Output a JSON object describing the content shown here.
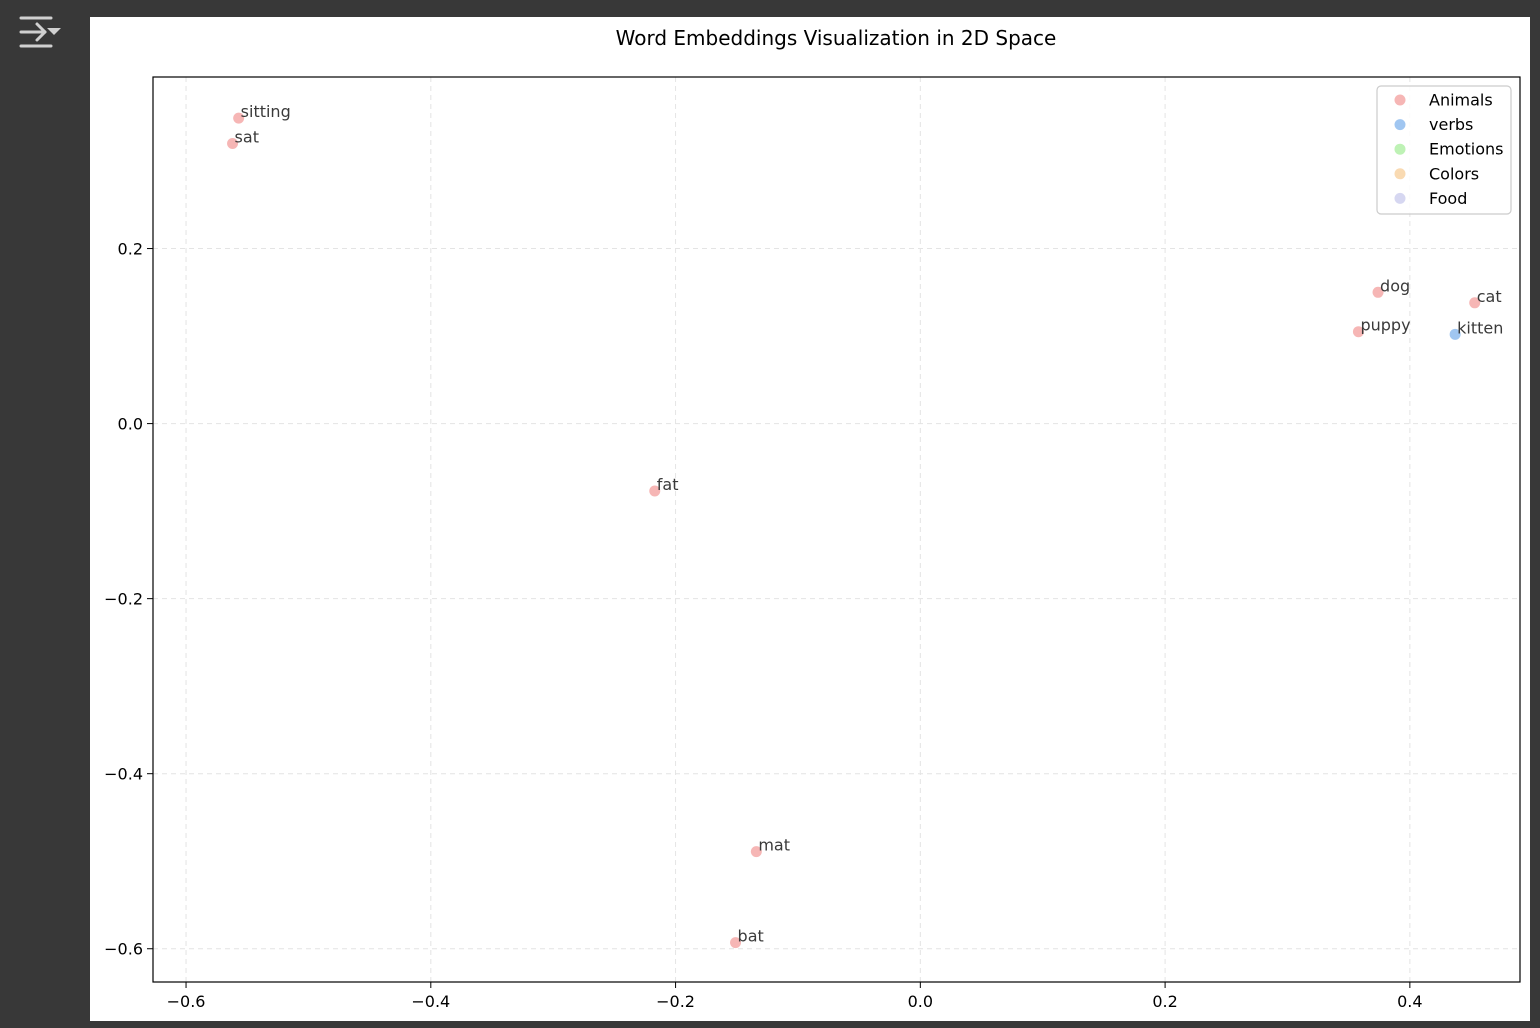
{
  "toolbar": {
    "toggle_icon": "output-collapse-icon"
  },
  "chart_data": {
    "type": "scatter",
    "title": "Word Embeddings Visualization in 2D Space",
    "xlabel": "",
    "ylabel": "",
    "xlim": [
      -0.627,
      0.49
    ],
    "ylim": [
      -0.638,
      0.396
    ],
    "xticks": [
      -0.6,
      -0.4,
      -0.2,
      0.0,
      0.2,
      0.4
    ],
    "xtick_labels": [
      "−0.6",
      "−0.4",
      "−0.2",
      "0.0",
      "0.2",
      "0.4"
    ],
    "yticks": [
      0.2,
      0.0,
      -0.2,
      -0.4,
      -0.6
    ],
    "ytick_labels": [
      "0.2",
      "0.0",
      "−0.2",
      "−0.4",
      "−0.6"
    ],
    "grid": true,
    "legend_position": "upper right",
    "series": [
      {
        "name": "Animals",
        "color": "#f4a9a8",
        "points": [
          {
            "label": "sitting",
            "x": -0.557,
            "y": 0.349
          },
          {
            "label": "sat",
            "x": -0.562,
            "y": 0.32
          },
          {
            "label": "dog",
            "x": 0.374,
            "y": 0.15
          },
          {
            "label": "cat",
            "x": 0.453,
            "y": 0.138
          },
          {
            "label": "puppy",
            "x": 0.358,
            "y": 0.105
          },
          {
            "label": "fat",
            "x": -0.217,
            "y": -0.077
          },
          {
            "label": "mat",
            "x": -0.134,
            "y": -0.489
          },
          {
            "label": "bat",
            "x": -0.151,
            "y": -0.593
          }
        ]
      },
      {
        "name": "verbs",
        "color": "#8fbcee",
        "points": [
          {
            "label": "kitten",
            "x": 0.437,
            "y": 0.102
          }
        ]
      },
      {
        "name": "Emotions",
        "color": "#b3f0a8",
        "points": []
      },
      {
        "name": "Colors",
        "color": "#f8d3a4",
        "points": []
      },
      {
        "name": "Food",
        "color": "#cfd0ee",
        "points": []
      }
    ]
  }
}
